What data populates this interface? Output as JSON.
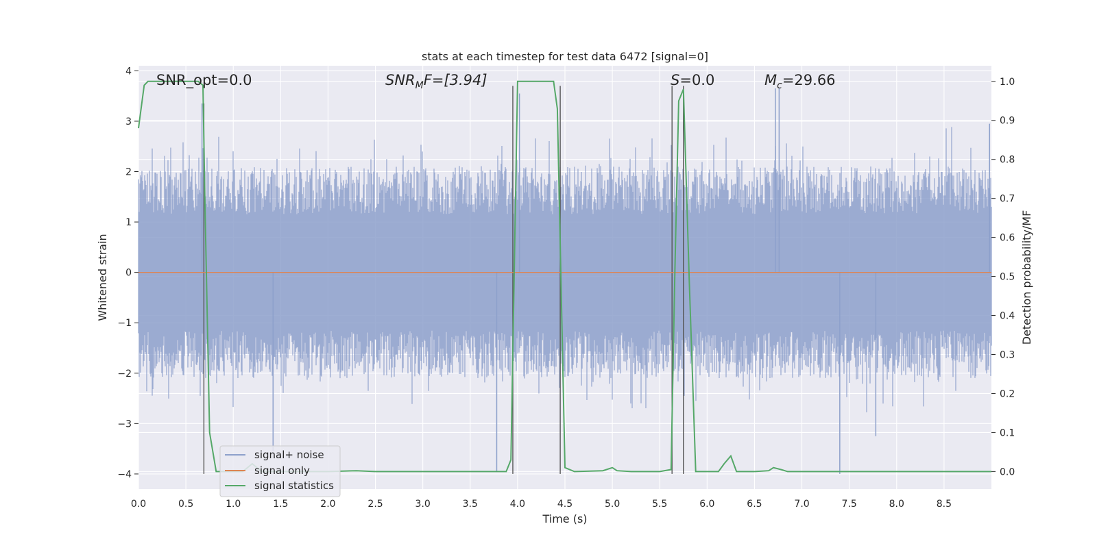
{
  "chart_data": {
    "type": "line",
    "title": "stats at each timestep for test data 6472 [signal=0]",
    "xlabel": "Time (s)",
    "ylabel": "Whitened strain",
    "ylabel_right": "Detection probability/MF",
    "xlim": [
      0.0,
      9.0
    ],
    "ylim": [
      -4.3,
      4.1
    ],
    "ylim_right": [
      -0.045,
      1.04
    ],
    "x_ticks": [
      "0.0",
      "0.5",
      "1.0",
      "1.5",
      "2.0",
      "2.5",
      "3.0",
      "3.5",
      "4.0",
      "4.5",
      "5.0",
      "5.5",
      "6.0",
      "6.5",
      "7.0",
      "7.5",
      "8.0",
      "8.5"
    ],
    "y_ticks": [
      "4",
      "3",
      "2",
      "1",
      "0",
      "−1",
      "−2",
      "−3",
      "−4"
    ],
    "y_ticks_right": [
      "1.0",
      "0.9",
      "0.8",
      "0.7",
      "0.6",
      "0.5",
      "0.4",
      "0.3",
      "0.2",
      "0.1",
      "0.0"
    ],
    "grid": true,
    "legend_position": "bottom-left",
    "annotations": {
      "snr_opt": "SNR_opt=0.0",
      "snr_mf_sym": "SNR",
      "snr_mf_sub": "M",
      "snr_mf_rest": "F=[3.94]",
      "s_sym": "S",
      "s_rest": "=0.0",
      "mc_sym": "M",
      "mc_sub": "c",
      "mc_rest": "=29.66"
    },
    "series": [
      {
        "name": "signal+ noise",
        "color": "#8da0cb",
        "style": "noise",
        "typical_envelope": [
          -2.1,
          2.1
        ],
        "peak_excursions": [
          {
            "x": 0.67,
            "y": 3.35
          },
          {
            "x": 1.42,
            "y": -3.55
          },
          {
            "x": 3.78,
            "y": -3.95
          },
          {
            "x": 4.02,
            "y": 3.55
          },
          {
            "x": 6.72,
            "y": 3.65
          },
          {
            "x": 6.76,
            "y": 3.65
          },
          {
            "x": 7.4,
            "y": -4.0
          },
          {
            "x": 7.78,
            "y": -3.25
          },
          {
            "x": 8.98,
            "y": 2.95
          }
        ]
      },
      {
        "name": "signal only",
        "color": "#dd8452",
        "x": [
          0.0,
          9.0
        ],
        "y": [
          0.0,
          0.0
        ]
      },
      {
        "name": "signal statistics",
        "color": "#55a868",
        "axis": "right",
        "x": [
          0.0,
          0.06,
          0.1,
          0.2,
          0.5,
          0.63,
          0.68,
          0.7,
          0.75,
          0.82,
          1.0,
          1.1,
          1.2,
          1.3,
          1.5,
          2.0,
          2.3,
          2.5,
          3.0,
          3.5,
          3.88,
          3.93,
          4.0,
          4.2,
          4.38,
          4.42,
          4.47,
          4.5,
          4.6,
          4.9,
          5.0,
          5.05,
          5.2,
          5.5,
          5.62,
          5.66,
          5.7,
          5.75,
          5.81,
          5.88,
          6.0,
          6.12,
          6.18,
          6.25,
          6.31,
          6.5,
          6.65,
          6.7,
          6.78,
          6.85,
          7.0,
          7.5,
          8.0,
          8.5,
          9.0
        ],
        "y": [
          0.88,
          0.99,
          1.0,
          1.0,
          1.0,
          1.0,
          0.99,
          0.7,
          0.1,
          0.0,
          0.0,
          0.0,
          0.02,
          0.0,
          0.0,
          0.0,
          0.002,
          0.0,
          0.0,
          0.0,
          0.0,
          0.03,
          1.0,
          1.0,
          1.0,
          0.93,
          0.35,
          0.01,
          0.0,
          0.002,
          0.01,
          0.002,
          0.0,
          0.0,
          0.005,
          0.51,
          0.95,
          0.98,
          0.5,
          0.0,
          0.0,
          0.0,
          0.02,
          0.04,
          0.0,
          0.0,
          0.002,
          0.01,
          0.005,
          0.0,
          0.0,
          0.0,
          0.0,
          0.0,
          0.0
        ]
      }
    ],
    "vertical_markers": [
      {
        "x": 0.69,
        "y_top": 3.35
      },
      {
        "x": 3.95,
        "y_top": 3.7
      },
      {
        "x": 4.45,
        "y_top": 3.7
      },
      {
        "x": 5.63,
        "y_top": 3.7
      },
      {
        "x": 5.75,
        "y_top": 3.7
      }
    ]
  }
}
